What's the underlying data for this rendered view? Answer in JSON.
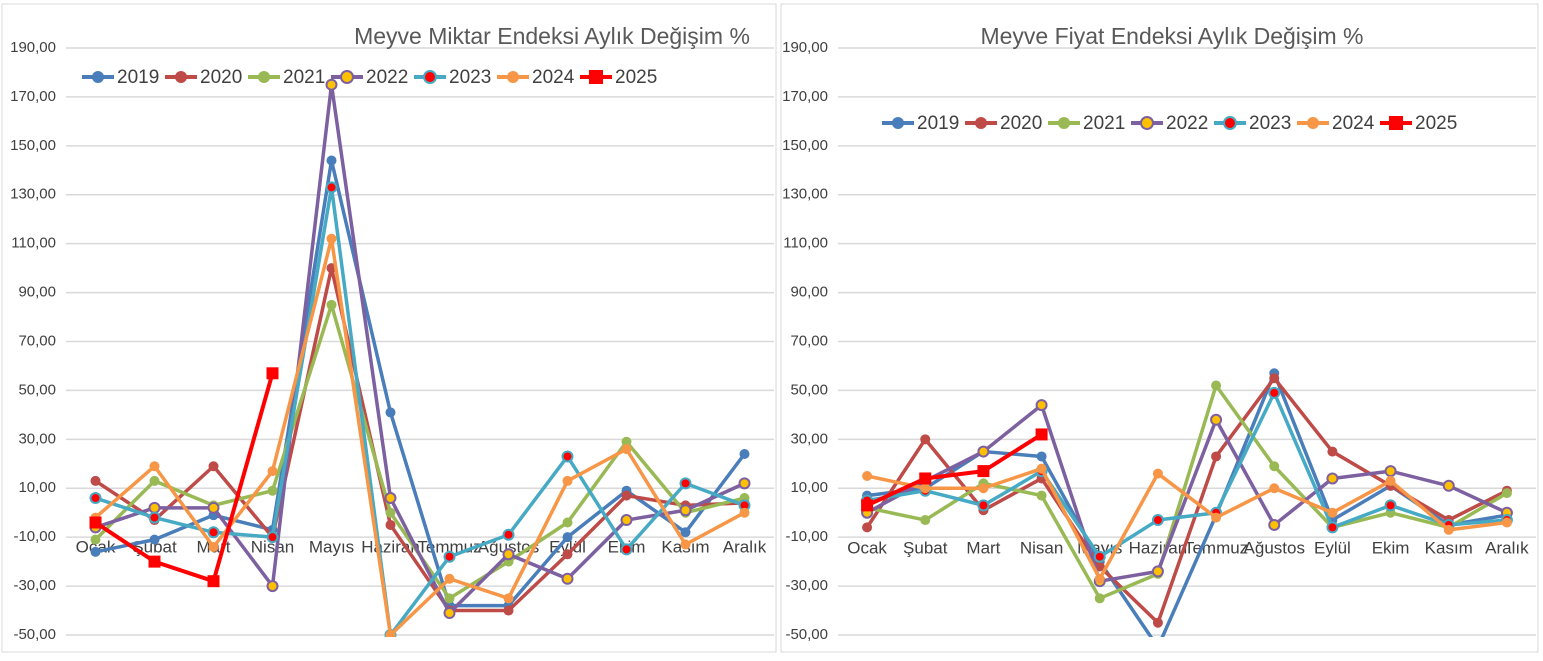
{
  "chart_data": [
    {
      "type": "line",
      "title": "Meyve Miktar Endeksi Aylık Değişim %",
      "categories": [
        "Ocak",
        "Şubat",
        "Mart",
        "Nisan",
        "Mayıs",
        "Haziran",
        "Temmuz",
        "Ağustos",
        "Eylül",
        "Ekim",
        "Kasım",
        "Aralık"
      ],
      "ylim": [
        -50,
        190
      ],
      "yticks": [
        {
          "value": -50,
          "label": "-50,00"
        },
        {
          "value": -30,
          "label": "-30,00"
        },
        {
          "value": -10,
          "label": "-10,00"
        },
        {
          "value": 10,
          "label": "10,00"
        },
        {
          "value": 30,
          "label": "30,00"
        },
        {
          "value": 50,
          "label": "50,00"
        },
        {
          "value": 70,
          "label": "70,00"
        },
        {
          "value": 90,
          "label": "90,00"
        },
        {
          "value": 110,
          "label": "110,00"
        },
        {
          "value": 130,
          "label": "130,00"
        },
        {
          "value": 150,
          "label": "150,00"
        },
        {
          "value": 170,
          "label": "170,00"
        },
        {
          "value": 190,
          "label": "190,00"
        }
      ],
      "grid": true,
      "series": [
        {
          "name": "2019",
          "color": "#4a7ebb",
          "marker": "circle",
          "values": [
            -16,
            -11,
            -1,
            -7,
            144,
            41,
            -38,
            -38,
            -10,
            9,
            -8,
            24
          ]
        },
        {
          "name": "2020",
          "color": "#be4b48",
          "marker": "circle",
          "values": [
            13,
            -3,
            19,
            -10,
            100,
            -5,
            -40,
            -40,
            -17,
            7,
            3,
            4
          ]
        },
        {
          "name": "2021",
          "color": "#98b954",
          "marker": "circle",
          "values": [
            -11,
            13,
            3,
            9,
            85,
            0,
            -35,
            -20,
            -4,
            29,
            0,
            6
          ]
        },
        {
          "name": "2022",
          "color": "#7d60a0",
          "marker": "circle",
          "marker_fill": "#ffc000",
          "values": [
            -6,
            2,
            2,
            -30,
            175,
            6,
            -41,
            -17,
            -27,
            -3,
            1,
            12
          ]
        },
        {
          "name": "2023",
          "color": "#46aac5",
          "marker": "circle",
          "marker_fill": "#ff0000",
          "values": [
            6,
            -2,
            -8,
            -10,
            133,
            -50,
            -18,
            -9,
            23,
            -15,
            12,
            3
          ]
        },
        {
          "name": "2024",
          "color": "#f79646",
          "marker": "circle",
          "values": [
            -2,
            19,
            -14,
            17,
            112,
            -50,
            -27,
            -35,
            13,
            26,
            -13,
            0
          ]
        },
        {
          "name": "2025",
          "color": "#ff0000",
          "marker": "square",
          "values": [
            -4,
            -20,
            -28,
            57,
            null,
            null,
            null,
            null,
            null,
            null,
            null,
            null
          ]
        }
      ]
    },
    {
      "type": "line",
      "title": "Meyve Fiyat Endeksi Aylık Değişim %",
      "categories": [
        "Ocak",
        "Şubat",
        "Mart",
        "Nisan",
        "Mayıs",
        "Haziran",
        "Temmuz",
        "Ağustos",
        "Eylül",
        "Ekim",
        "Kasım",
        "Aralık"
      ],
      "ylim": [
        -50,
        190
      ],
      "yticks": [
        {
          "value": -50,
          "label": "-50,00"
        },
        {
          "value": -30,
          "label": "-30,00"
        },
        {
          "value": -10,
          "label": "-10,00"
        },
        {
          "value": 10,
          "label": "10,00"
        },
        {
          "value": 30,
          "label": "30,00"
        },
        {
          "value": 50,
          "label": "50,00"
        },
        {
          "value": 70,
          "label": "70,00"
        },
        {
          "value": 90,
          "label": "90,00"
        },
        {
          "value": 110,
          "label": "110,00"
        },
        {
          "value": 130,
          "label": "130,00"
        },
        {
          "value": 150,
          "label": "150,00"
        },
        {
          "value": 170,
          "label": "170,00"
        },
        {
          "value": 190,
          "label": "190,00"
        }
      ],
      "grid": true,
      "series": [
        {
          "name": "2019",
          "color": "#4a7ebb",
          "marker": "circle",
          "values": [
            7,
            10,
            25,
            23,
            -20,
            -55,
            -1,
            57,
            -3,
            11,
            -5,
            -1
          ]
        },
        {
          "name": "2020",
          "color": "#be4b48",
          "marker": "circle",
          "values": [
            -6,
            30,
            1,
            14,
            -22,
            -45,
            23,
            55,
            25,
            11,
            -3,
            9
          ]
        },
        {
          "name": "2021",
          "color": "#98b954",
          "marker": "circle",
          "values": [
            2,
            -3,
            12,
            7,
            -35,
            -25,
            52,
            19,
            -6,
            0,
            -6,
            8
          ]
        },
        {
          "name": "2022",
          "color": "#7d60a0",
          "marker": "circle",
          "marker_fill": "#ffc000",
          "values": [
            0,
            13,
            25,
            44,
            -28,
            -24,
            38,
            -5,
            14,
            17,
            11,
            0
          ]
        },
        {
          "name": "2023",
          "color": "#46aac5",
          "marker": "circle",
          "marker_fill": "#ff0000",
          "values": [
            5,
            9,
            3,
            17,
            -18,
            -3,
            0,
            49,
            -6,
            3,
            -5,
            -3
          ]
        },
        {
          "name": "2024",
          "color": "#f79646",
          "marker": "circle",
          "values": [
            15,
            10,
            10,
            18,
            -27,
            16,
            -2,
            10,
            0,
            13,
            -7,
            -4
          ]
        },
        {
          "name": "2025",
          "color": "#ff0000",
          "marker": "square",
          "values": [
            3,
            14,
            17,
            32,
            null,
            null,
            null,
            null,
            null,
            null,
            null,
            null
          ]
        }
      ]
    }
  ]
}
